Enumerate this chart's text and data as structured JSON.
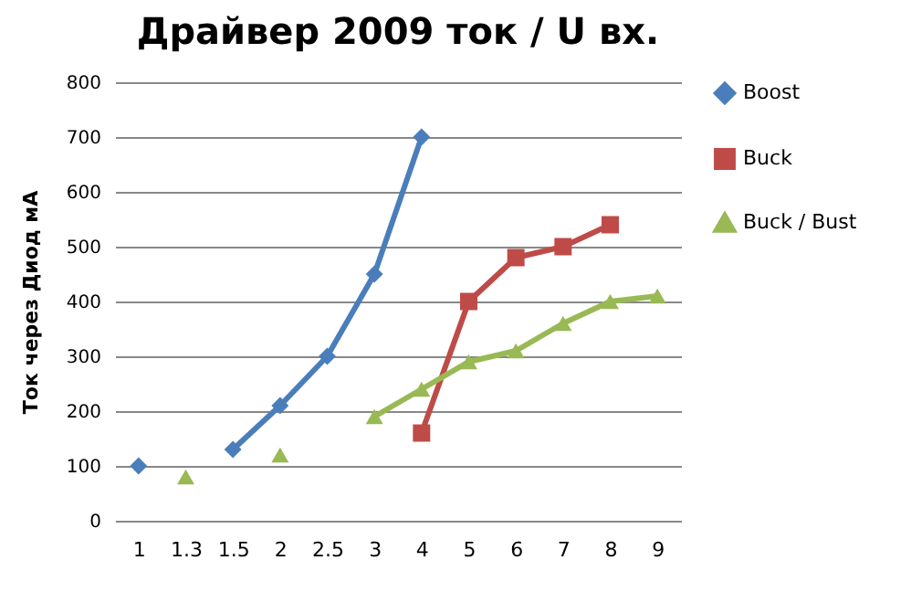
{
  "chart_data": {
    "type": "line",
    "title": "Драйвер 2009 ток / U вх.",
    "ylabel": "Ток через Диод мА",
    "categories": [
      "1",
      "1.3",
      "1.5",
      "2",
      "2.5",
      "3",
      "4",
      "5",
      "6",
      "7",
      "8",
      "9"
    ],
    "series": [
      {
        "name": "Boost",
        "color": "#4a7ebb",
        "marker": "diamond",
        "values": [
          100,
          null,
          130,
          210,
          300,
          450,
          700,
          null,
          null,
          null,
          null,
          null
        ]
      },
      {
        "name": "Buck",
        "color": "#be4b48",
        "marker": "square",
        "values": [
          null,
          null,
          null,
          null,
          null,
          null,
          160,
          400,
          480,
          500,
          540,
          null
        ]
      },
      {
        "name": "Buck / Bust",
        "color": "#98b954",
        "marker": "triangle",
        "values": [
          null,
          80,
          null,
          120,
          null,
          190,
          240,
          290,
          310,
          360,
          400,
          410
        ]
      }
    ],
    "ylim": [
      0,
      800
    ],
    "yticks": [
      0,
      100,
      200,
      300,
      400,
      500,
      600,
      700,
      800
    ],
    "grid": "y",
    "legend": "right",
    "line_style": "solid"
  }
}
